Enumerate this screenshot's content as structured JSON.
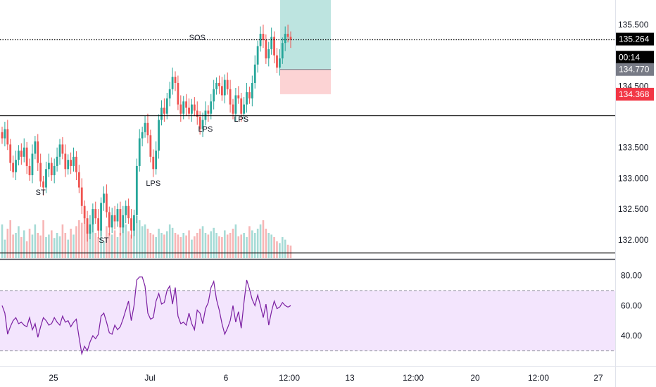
{
  "chart_data": [
    {
      "type": "candlestick",
      "price_axis": {
        "ticks": [
          "135.500",
          "134.500",
          "133.500",
          "133.000",
          "132.500",
          "132.000"
        ],
        "ylim": [
          131.7,
          135.9
        ],
        "scale": "linear"
      },
      "time_axis": {
        "ticks": [
          "25",
          "Jul",
          "6",
          "12:00",
          "13",
          "12:00",
          "20",
          "12:00",
          "27"
        ]
      },
      "horizontal_levels": [
        {
          "label": "135.264",
          "value": 135.264,
          "style": "dotted",
          "color": "#000000"
        },
        {
          "label": "134.023",
          "value": 134.023,
          "style": "solid",
          "color": "#000000"
        },
        {
          "label": "131.792",
          "value": 131.792,
          "style": "solid",
          "color": "#000000"
        }
      ],
      "price_boxes": [
        {
          "label": "135.264",
          "value": 135.264,
          "color": "#000000"
        },
        {
          "label": "00:14",
          "value": 134.97,
          "color": "#000000"
        },
        {
          "label": "134.770",
          "value": 134.77,
          "color": "#787b86"
        },
        {
          "label": "134.368",
          "value": 134.368,
          "color": "#f23645"
        }
      ],
      "position_tool": {
        "entry": 134.77,
        "target": 135.9,
        "stop": 134.368,
        "profit_color": "#b2dfdb",
        "loss_color": "#fccbcd"
      },
      "annotations": [
        {
          "text": "ST",
          "index": 14,
          "price": 132.73
        },
        {
          "text": "ST",
          "index": 37,
          "price": 131.95
        },
        {
          "text": "LPS",
          "index": 55,
          "price": 132.88
        },
        {
          "text": "LPS",
          "index": 74,
          "price": 133.76
        },
        {
          "text": "LPS",
          "index": 87,
          "price": 133.92
        },
        {
          "text": "SOS",
          "index": 71,
          "price": 135.25
        }
      ],
      "series": [
        {
          "name": "",
          "close": [
            133.65,
            133.8,
            133.55,
            133.25,
            133.1,
            133.3,
            133.45,
            133.35,
            133.5,
            133.2,
            133.05,
            133.4,
            133.6,
            133.25,
            132.95,
            132.85,
            133.15,
            133.25,
            133.05,
            133.2,
            133.35,
            133.55,
            133.4,
            133.15,
            133.3,
            133.2,
            133.35,
            133.1,
            132.85,
            132.55,
            132.35,
            132.1,
            132.25,
            132.5,
            132.35,
            132.15,
            132.6,
            132.75,
            132.45,
            132.2,
            132.4,
            132.3,
            132.5,
            132.2,
            132.4,
            132.55,
            132.35,
            132.15,
            132.4,
            133.2,
            133.65,
            133.75,
            133.9,
            133.7,
            133.35,
            133.15,
            133.45,
            133.95,
            134.15,
            134.05,
            134.3,
            134.45,
            134.65,
            134.55,
            134.2,
            134.05,
            134.25,
            134.15,
            134.05,
            134.2,
            134.1,
            134.0,
            133.8,
            133.95,
            134.1,
            134.05,
            134.25,
            134.45,
            134.55,
            134.5,
            134.35,
            134.6,
            134.45,
            134.2,
            134.05,
            134.35,
            134.3,
            134.05,
            134.2,
            134.4,
            134.3,
            134.55,
            134.85,
            135.15,
            135.35,
            135.25,
            134.95,
            135.1,
            135.3,
            135.0,
            134.8,
            134.95,
            135.2,
            135.35,
            135.3,
            135.25
          ],
          "volume": [
            40,
            22,
            35,
            45,
            28,
            30,
            38,
            25,
            33,
            20,
            35,
            28,
            40,
            30,
            27,
            45,
            25,
            28,
            33,
            24,
            30,
            26,
            40,
            30,
            22,
            35,
            28,
            38,
            45,
            42,
            50,
            40,
            35,
            48,
            30,
            25,
            35,
            20,
            38,
            30,
            28,
            33,
            25,
            30,
            45,
            40,
            32,
            28,
            35,
            50,
            45,
            38,
            40,
            35,
            30,
            28,
            25,
            35,
            30,
            28,
            32,
            40,
            36,
            30,
            28,
            25,
            30,
            27,
            33,
            22,
            26,
            30,
            35,
            38,
            30,
            28,
            32,
            36,
            30,
            26,
            25,
            33,
            28,
            30,
            35,
            40,
            26,
            28,
            30,
            25,
            38,
            33,
            30,
            35,
            40,
            45,
            35,
            30,
            28,
            25,
            20,
            18,
            25,
            22,
            16,
            15
          ],
          "rsi": [
            60,
            55,
            41,
            46,
            50,
            52,
            48,
            49,
            47,
            46,
            52,
            44,
            48,
            39,
            46,
            52,
            50,
            47,
            48,
            52,
            49,
            47,
            53,
            49,
            50,
            46,
            49,
            51,
            39,
            28,
            33,
            30,
            36,
            40,
            38,
            41,
            53,
            55,
            49,
            42,
            41,
            47,
            44,
            46,
            51,
            57,
            63,
            50,
            60,
            77,
            79,
            79,
            73,
            55,
            51,
            52,
            63,
            68,
            61,
            62,
            70,
            73,
            61,
            72,
            53,
            48,
            49,
            47,
            55,
            48,
            44,
            57,
            55,
            48,
            58,
            62,
            72,
            76,
            64,
            57,
            48,
            41,
            45,
            50,
            60,
            49,
            56,
            45,
            62,
            77,
            71,
            64,
            60,
            67,
            60,
            52,
            61,
            47,
            56,
            63,
            58,
            59,
            62,
            60,
            59,
            60
          ]
        }
      ]
    },
    {
      "type": "line",
      "indicator": "RSI",
      "ylim": [
        20,
        90
      ],
      "ticks": [
        "80.00",
        "60.00",
        "40.00"
      ],
      "band": {
        "upper": 70,
        "lower": 30,
        "fill": "#f3e5fd",
        "line": "#9598a1"
      },
      "line_color": "#7b1fa2"
    }
  ],
  "colors": {
    "up": "#26a69a",
    "down": "#ef5350",
    "up_volume": "#a6dbd6",
    "down_volume": "#f7b6b6"
  }
}
